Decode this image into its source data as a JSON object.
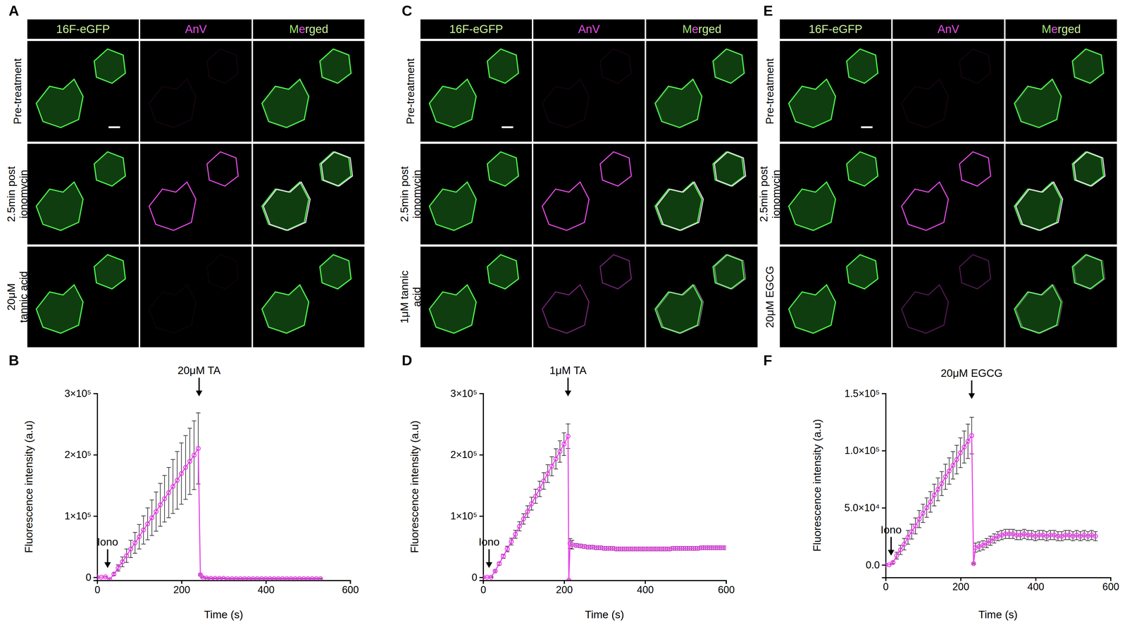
{
  "chart_data": [
    {
      "type": "line",
      "panel_label": "B",
      "xlabel": "Time (s)",
      "ylabel": "Fluorescence intensity (a.u)",
      "color": "#ea3fea",
      "marker": "open-circle",
      "xlim": [
        0,
        600
      ],
      "xticks": [
        0,
        200,
        400,
        600
      ],
      "ylim": [
        -5000,
        300000
      ],
      "yticks": [
        0,
        {
          "value": 100000,
          "label": "1×10⁵"
        },
        {
          "value": 200000,
          "label": "2×10⁵"
        },
        {
          "value": 300000,
          "label": "3×10⁵"
        }
      ],
      "x": [
        0,
        10,
        20,
        30,
        40,
        50,
        60,
        70,
        80,
        90,
        100,
        110,
        120,
        130,
        140,
        150,
        160,
        170,
        180,
        190,
        200,
        210,
        220,
        230,
        240,
        245,
        250,
        260,
        270,
        280,
        290,
        300,
        310,
        320,
        330,
        340,
        350,
        360,
        370,
        380,
        390,
        400,
        410,
        420,
        430,
        440,
        450,
        460,
        470,
        480,
        490,
        500,
        510,
        520,
        530
      ],
      "values": [
        0,
        0,
        500,
        -4000,
        5000,
        15000,
        25000,
        35000,
        46000,
        56000,
        66000,
        77000,
        87000,
        97000,
        107000,
        118000,
        128000,
        138000,
        148000,
        158000,
        169000,
        179000,
        189000,
        199000,
        210000,
        4000,
        0,
        -1500,
        -2000,
        -2000,
        -2000,
        -2000,
        -2500,
        -2500,
        -2500,
        -2500,
        -2500,
        -2500,
        -2500,
        -2500,
        -2500,
        -2500,
        -2500,
        -2500,
        -2500,
        -2500,
        -2500,
        -2500,
        -2500,
        -2500,
        -2500,
        -2500,
        -2500,
        -2500,
        -2500
      ],
      "errors": [
        0,
        0,
        500,
        1500,
        2000,
        5000,
        8000,
        11000,
        14000,
        17000,
        20000,
        23000,
        26000,
        29000,
        32000,
        35000,
        38000,
        41000,
        44000,
        47000,
        50000,
        52000,
        54000,
        56000,
        58000,
        1000,
        800,
        800,
        800,
        800,
        800,
        800,
        800,
        800,
        800,
        800,
        800,
        800,
        800,
        800,
        800,
        800,
        800,
        800,
        800,
        800,
        800,
        800,
        800,
        800,
        800,
        800,
        800,
        800,
        800
      ],
      "annotations": [
        {
          "text": "Iono",
          "x": 25,
          "y": 15000
        },
        {
          "text": "20μM TA",
          "x": 242,
          "y": 295000
        }
      ]
    },
    {
      "type": "line",
      "panel_label": "D",
      "xlabel": "Time (s)",
      "ylabel": "Fluorescence intensity (a.u)",
      "color": "#ea3fea",
      "marker": "open-circle",
      "xlim": [
        0,
        600
      ],
      "xticks": [
        0,
        200,
        400,
        600
      ],
      "ylim": [
        -5000,
        300000
      ],
      "yticks": [
        0,
        {
          "value": 100000,
          "label": "1×10⁵"
        },
        {
          "value": 200000,
          "label": "2×10⁵"
        },
        {
          "value": 300000,
          "label": "3×10⁵"
        }
      ],
      "x": [
        0,
        10,
        20,
        30,
        40,
        50,
        60,
        70,
        80,
        90,
        100,
        110,
        120,
        130,
        140,
        150,
        160,
        170,
        180,
        190,
        200,
        210,
        212,
        215,
        220,
        230,
        240,
        250,
        260,
        270,
        280,
        290,
        300,
        310,
        320,
        330,
        340,
        350,
        360,
        370,
        380,
        390,
        400,
        410,
        420,
        430,
        440,
        450,
        460,
        470,
        480,
        490,
        500,
        510,
        520,
        530,
        540,
        550,
        560,
        570,
        580,
        590,
        600
      ],
      "values": [
        0,
        0,
        0,
        10000,
        22000,
        34000,
        46000,
        58000,
        70000,
        83000,
        95000,
        107000,
        120000,
        132000,
        144000,
        157000,
        169000,
        181000,
        193000,
        205000,
        217000,
        230000,
        -5000,
        55000,
        53000,
        52000,
        51000,
        50000,
        49000,
        49000,
        48000,
        48000,
        47000,
        47000,
        47000,
        46000,
        46000,
        46000,
        46000,
        46000,
        46000,
        46000,
        46000,
        46000,
        46000,
        46000,
        46000,
        46000,
        46000,
        47000,
        47000,
        47000,
        47000,
        47000,
        47000,
        47000,
        48000,
        48000,
        48000,
        48000,
        48000,
        48000,
        48000
      ],
      "errors": [
        0,
        0,
        500,
        1500,
        2500,
        3500,
        4500,
        5500,
        6500,
        7500,
        8500,
        9500,
        10500,
        11500,
        12500,
        13500,
        14500,
        15500,
        16500,
        17500,
        18500,
        20000,
        500,
        8000,
        7000,
        3000,
        3000,
        3000,
        3000,
        3000,
        3000,
        3000,
        3000,
        3000,
        3000,
        3000,
        3000,
        3000,
        3000,
        3000,
        3000,
        3000,
        3000,
        3000,
        3000,
        3000,
        3000,
        3000,
        3000,
        3000,
        3000,
        3000,
        3000,
        3000,
        3000,
        3000,
        3000,
        3000,
        3000,
        3000,
        3000,
        3000,
        3000
      ],
      "annotations": [
        {
          "text": "Iono",
          "x": 15,
          "y": 15000
        },
        {
          "text": "1μM TA",
          "x": 210,
          "y": 295000
        }
      ]
    },
    {
      "type": "line",
      "panel_label": "F",
      "xlabel": "Time (s)",
      "ylabel": "Fluorescence intensity (a.u)",
      "color": "#ea3fea",
      "marker": "open-circle",
      "xlim": [
        0,
        600
      ],
      "xticks": [
        0,
        200,
        400,
        600
      ],
      "ylim": [
        -11000,
        150000
      ],
      "yticks": [
        {
          "value": 0,
          "label": "0.0"
        },
        {
          "value": 50000,
          "label": "5.0×10⁴"
        },
        {
          "value": 100000,
          "label": "1.0×10⁵"
        },
        {
          "value": 150000,
          "label": "1.5×10⁵"
        }
      ],
      "x": [
        0,
        10,
        20,
        30,
        40,
        50,
        60,
        70,
        80,
        90,
        100,
        110,
        120,
        130,
        140,
        150,
        160,
        170,
        180,
        190,
        200,
        210,
        220,
        230,
        235,
        240,
        250,
        260,
        270,
        280,
        290,
        300,
        310,
        320,
        330,
        340,
        350,
        360,
        370,
        380,
        390,
        400,
        410,
        420,
        430,
        440,
        450,
        460,
        470,
        480,
        490,
        500,
        510,
        520,
        530,
        540,
        550,
        560
      ],
      "values": [
        0,
        0,
        2000,
        8000,
        13000,
        18000,
        24000,
        29000,
        34000,
        40000,
        45000,
        50000,
        55000,
        61000,
        66000,
        71000,
        77000,
        82000,
        87000,
        92000,
        98000,
        103000,
        108000,
        113000,
        1000,
        15000,
        16000,
        17000,
        19000,
        21000,
        23000,
        25000,
        26000,
        27000,
        27000,
        27000,
        26000,
        26000,
        27000,
        26000,
        26000,
        25000,
        26000,
        26000,
        25000,
        26000,
        26000,
        25000,
        25000,
        26000,
        26000,
        25000,
        26000,
        25000,
        26000,
        25000,
        26000,
        25000
      ],
      "errors": [
        0,
        0,
        1000,
        3000,
        4000,
        5000,
        6000,
        6500,
        7000,
        7500,
        8000,
        8500,
        9000,
        9500,
        10000,
        10500,
        11000,
        11500,
        12000,
        12500,
        13000,
        14000,
        15000,
        16000,
        500,
        4000,
        4000,
        4000,
        4000,
        4000,
        4000,
        4000,
        4000,
        4000,
        4000,
        4000,
        4000,
        4000,
        4000,
        4000,
        4000,
        4000,
        4000,
        4000,
        4000,
        4000,
        4000,
        4000,
        4000,
        4000,
        4000,
        4000,
        4000,
        4000,
        4000,
        4000,
        4000,
        4000
      ],
      "annotations": [
        {
          "text": "Iono",
          "x": 15,
          "y": 8000
        },
        {
          "text": "20μM EGCG",
          "x": 230,
          "y": 145000
        }
      ]
    }
  ],
  "image_panels": [
    {
      "panel_label": "A",
      "columns": [
        "16F-eGFP",
        "AnV",
        "Merged"
      ],
      "rows": [
        [
          "Pre-treatment"
        ],
        [
          "2.5min post",
          "ionomycin"
        ],
        [
          "20μM",
          "tannic acid"
        ]
      ]
    },
    {
      "panel_label": "C",
      "columns": [
        "16F-eGFP",
        "AnV",
        "Merged"
      ],
      "rows": [
        [
          "Pre-treatment"
        ],
        [
          "2.5min post",
          "ionomycin"
        ],
        [
          "1μM tannic",
          "acid"
        ]
      ]
    },
    {
      "panel_label": "E",
      "columns": [
        "16F-eGFP",
        "AnV",
        "Merged"
      ],
      "rows": [
        [
          "Pre-treatment"
        ],
        [
          "2.5min post",
          "ionomycin"
        ],
        [
          "20μM EGCG"
        ]
      ]
    }
  ]
}
